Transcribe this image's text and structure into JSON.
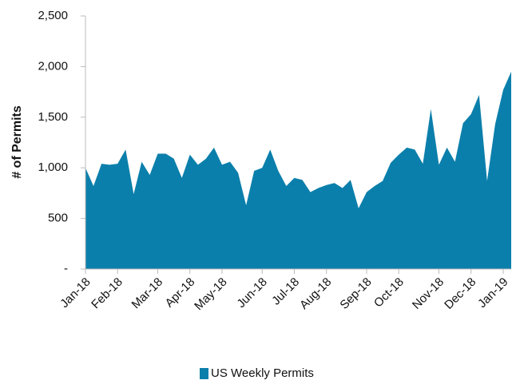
{
  "chart_data": {
    "type": "area",
    "y_label": "# of Permits",
    "categories": [
      "Jan-18",
      null,
      null,
      null,
      "Feb-18",
      null,
      null,
      null,
      null,
      "Mar-18",
      null,
      null,
      null,
      "Apr-18",
      null,
      null,
      null,
      "May-18",
      null,
      null,
      null,
      null,
      "Jun-18",
      null,
      null,
      null,
      "Jul-18",
      null,
      null,
      null,
      "Aug-18",
      null,
      null,
      null,
      null,
      "Sep-18",
      null,
      null,
      null,
      "Oct-18",
      null,
      null,
      null,
      null,
      "Nov-18",
      null,
      null,
      null,
      "Dec-18",
      null,
      null,
      null,
      "Jan-19",
      null
    ],
    "series": [
      {
        "name": "US Weekly Permits",
        "color": "#0b7fab",
        "values": [
          1000,
          820,
          1040,
          1030,
          1040,
          1180,
          740,
          1060,
          930,
          1140,
          1140,
          1090,
          900,
          1130,
          1030,
          1090,
          1200,
          1030,
          1060,
          950,
          630,
          970,
          1000,
          1180,
          970,
          820,
          900,
          880,
          760,
          800,
          830,
          850,
          800,
          880,
          600,
          760,
          820,
          870,
          1050,
          1130,
          1200,
          1180,
          1040,
          1580,
          1030,
          1200,
          1060,
          1440,
          1530,
          1720,
          870,
          1430,
          1770,
          1950
        ]
      }
    ],
    "ylim": [
      0,
      2500
    ],
    "yticks": [
      {
        "value": 0,
        "label": "-"
      },
      500,
      {
        "value": 1000,
        "label": "1,000"
      },
      {
        "value": 1500,
        "label": "1,500"
      },
      {
        "value": 2000,
        "label": "2,000"
      },
      {
        "value": 2500,
        "label": "2,500"
      }
    ],
    "legend": "bottom"
  }
}
